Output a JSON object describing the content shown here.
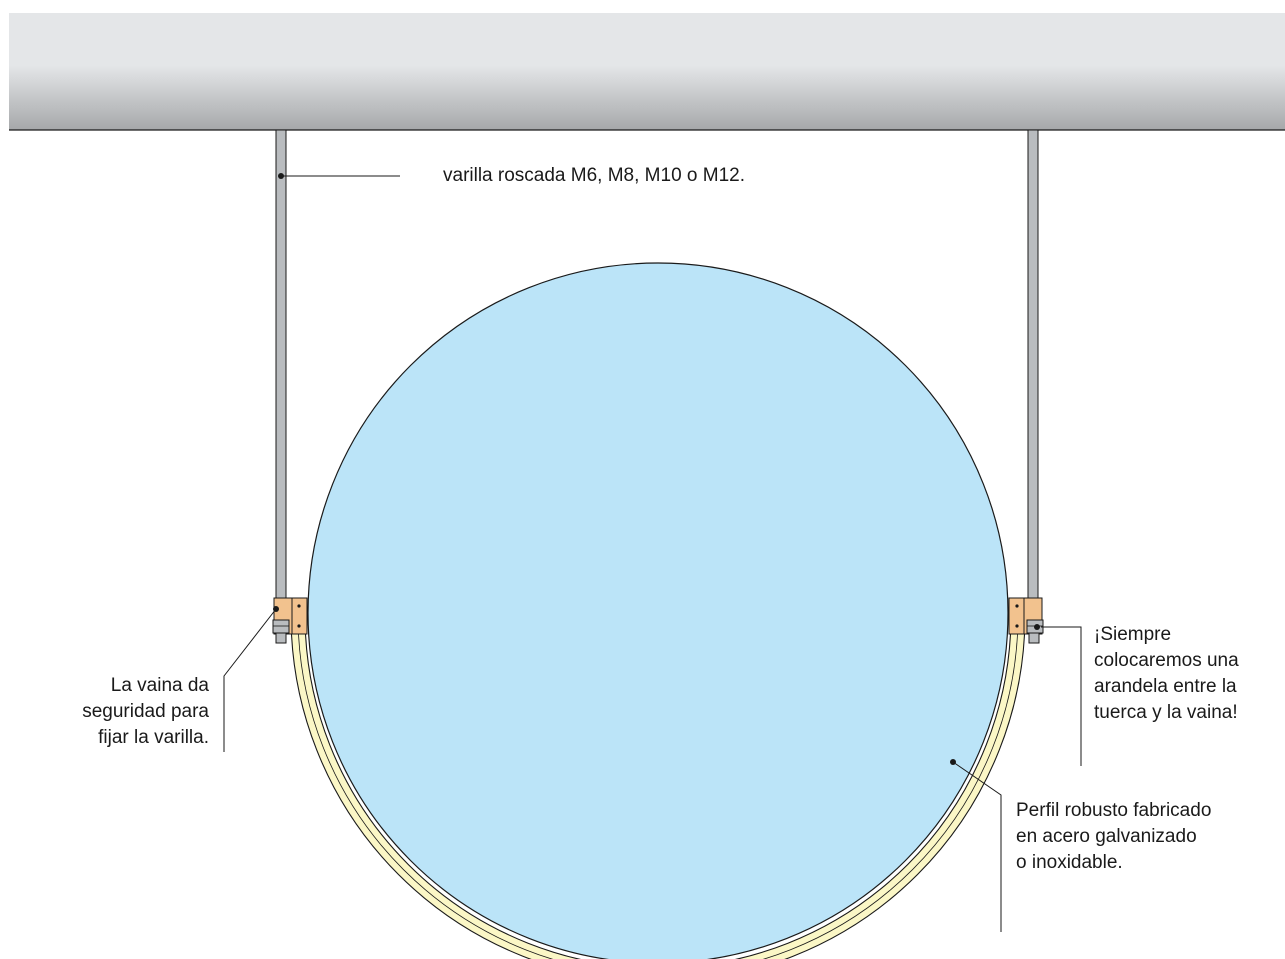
{
  "annotations": {
    "rod": "varilla roscada M6, M8, M10 o M12.",
    "sleeve": [
      "La vaina da",
      "seguridad para",
      "fijar la varilla."
    ],
    "washer": [
      "¡Siempre",
      "colocaremos una",
      "arandela entre la",
      "tuerca y la vaina!"
    ],
    "profile": [
      "Perfil robusto fabricado",
      "en acero galvanizado",
      "o inoxidable."
    ]
  },
  "colors": {
    "ceiling_top": "#e4e6e8",
    "ceiling_bottom": "#a6a8aa",
    "duct_fill": "#bbe4f8",
    "profile_fill": "#fbf7c6",
    "sleeve_fill": "#f2c28e",
    "rod_fill": "#b9bcbf",
    "line": "#1a1a1a"
  }
}
